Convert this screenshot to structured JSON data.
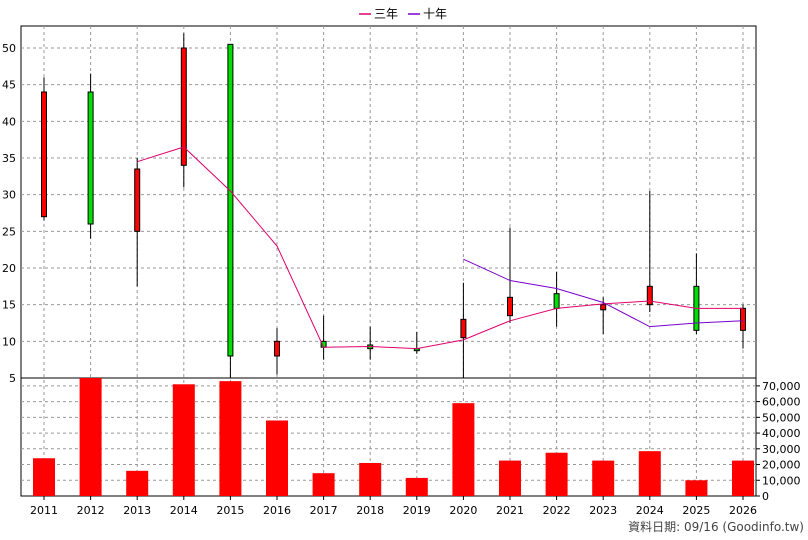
{
  "chart_data": {
    "type": "candlestick+bar",
    "legend": [
      {
        "label": "三年",
        "color": "#e0006e"
      },
      {
        "label": "十年",
        "color": "#7a00cc"
      }
    ],
    "years": [
      "2011",
      "2012",
      "2013",
      "2014",
      "2015",
      "2016",
      "2017",
      "2018",
      "2019",
      "2020",
      "2021",
      "2022",
      "2023",
      "2024",
      "2025",
      "2026"
    ],
    "price_axis": {
      "ticks": [
        5,
        10,
        15,
        20,
        25,
        30,
        35,
        40,
        45,
        50
      ],
      "range": [
        5,
        53
      ]
    },
    "volume_axis": {
      "ticks": [
        "0",
        "10,000",
        "20,000",
        "30,000",
        "40,000",
        "50,000",
        "60,000",
        "70,000"
      ],
      "range": [
        0,
        75000
      ]
    },
    "candles": [
      {
        "open": 27.0,
        "high": 46.0,
        "low": 26.5,
        "close": 44.0,
        "color": "red"
      },
      {
        "open": 44.0,
        "high": 46.5,
        "low": 24.0,
        "close": 26.0,
        "color": "green"
      },
      {
        "open": 25.0,
        "high": 35.0,
        "low": 17.5,
        "close": 33.5,
        "color": "red"
      },
      {
        "open": 34.0,
        "high": 52.0,
        "low": 31.0,
        "close": 50.0,
        "color": "red"
      },
      {
        "open": 50.5,
        "high": 50.5,
        "low": 5.0,
        "close": 8.0,
        "color": "green"
      },
      {
        "open": 8.0,
        "high": 11.8,
        "low": 5.5,
        "close": 10.0,
        "color": "red"
      },
      {
        "open": 10.0,
        "high": 13.5,
        "low": 7.5,
        "close": 9.2,
        "color": "green"
      },
      {
        "open": 9.0,
        "high": 12.0,
        "low": 7.5,
        "close": 9.5,
        "color": "green"
      },
      {
        "open": 9.0,
        "high": 11.3,
        "low": 8.3,
        "close": 8.8,
        "color": "green"
      },
      {
        "open": 10.5,
        "high": 18.0,
        "low": 5.0,
        "close": 13.0,
        "color": "red"
      },
      {
        "open": 13.5,
        "high": 25.5,
        "low": 12.5,
        "close": 16.0,
        "color": "red"
      },
      {
        "open": 16.5,
        "high": 19.5,
        "low": 12.0,
        "close": 14.5,
        "color": "green"
      },
      {
        "open": 14.3,
        "high": 16.0,
        "low": 11.0,
        "close": 15.0,
        "color": "red"
      },
      {
        "open": 15.0,
        "high": 30.5,
        "low": 14.0,
        "close": 17.5,
        "color": "red"
      },
      {
        "open": 17.5,
        "high": 22.0,
        "low": 11.0,
        "close": 11.5,
        "color": "green"
      },
      {
        "open": 11.5,
        "high": 15.0,
        "low": 9.0,
        "close": 14.5,
        "color": "red"
      }
    ],
    "three_year_line": [
      null,
      null,
      34.5,
      36.5,
      30.5,
      23.0,
      9.2,
      9.3,
      9.0,
      10.2,
      12.8,
      14.5,
      15.1,
      15.5,
      14.5,
      14.5
    ],
    "ten_year_line": [
      null,
      null,
      null,
      null,
      null,
      null,
      null,
      null,
      null,
      21.2,
      18.3,
      17.2,
      15.3,
      12.0,
      12.5,
      12.8
    ],
    "volume": [
      24000,
      76000,
      16000,
      71000,
      73000,
      48000,
      14500,
      21000,
      11500,
      59000,
      22500,
      27500,
      22500,
      28500,
      10000,
      22500
    ],
    "volume_color": "#ff0000",
    "grid": true
  },
  "footer": {
    "text": "資料日期: 09/16  (Goodinfo.tw)"
  }
}
